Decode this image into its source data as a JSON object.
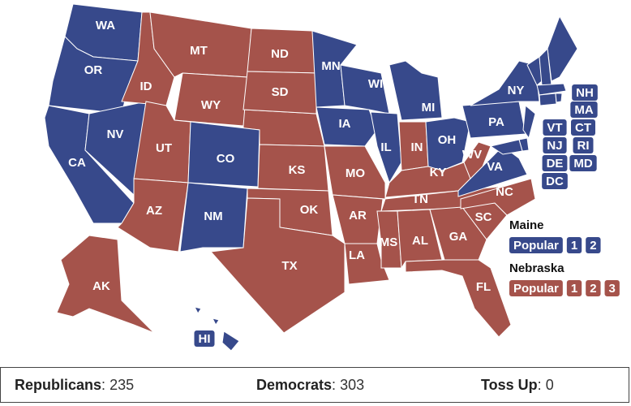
{
  "colors": {
    "R": "#a5534b",
    "D": "#37498b"
  },
  "states": [
    {
      "label": "WA",
      "party": "D"
    },
    {
      "label": "OR",
      "party": "D"
    },
    {
      "label": "CA",
      "party": "D"
    },
    {
      "label": "NV",
      "party": "D"
    },
    {
      "label": "ID",
      "party": "R"
    },
    {
      "label": "MT",
      "party": "R"
    },
    {
      "label": "WY",
      "party": "R"
    },
    {
      "label": "UT",
      "party": "R"
    },
    {
      "label": "AZ",
      "party": "R"
    },
    {
      "label": "CO",
      "party": "D"
    },
    {
      "label": "NM",
      "party": "D"
    },
    {
      "label": "ND",
      "party": "R"
    },
    {
      "label": "SD",
      "party": "R"
    },
    {
      "label": "KS",
      "party": "R"
    },
    {
      "label": "OK",
      "party": "R"
    },
    {
      "label": "TX",
      "party": "R"
    },
    {
      "label": "MN",
      "party": "D"
    },
    {
      "label": "IA",
      "party": "D"
    },
    {
      "label": "MO",
      "party": "R"
    },
    {
      "label": "AR",
      "party": "R"
    },
    {
      "label": "LA",
      "party": "R"
    },
    {
      "label": "WI",
      "party": "D"
    },
    {
      "label": "IL",
      "party": "D"
    },
    {
      "label": "MI",
      "party": "D"
    },
    {
      "label": "IN",
      "party": "R"
    },
    {
      "label": "OH",
      "party": "D"
    },
    {
      "label": "KY",
      "party": "R"
    },
    {
      "label": "TN",
      "party": "R"
    },
    {
      "label": "MS",
      "party": "R"
    },
    {
      "label": "AL",
      "party": "R"
    },
    {
      "label": "GA",
      "party": "R"
    },
    {
      "label": "FL",
      "party": "R"
    },
    {
      "label": "SC",
      "party": "R"
    },
    {
      "label": "NC",
      "party": "R"
    },
    {
      "label": "VA",
      "party": "D"
    },
    {
      "label": "WV",
      "party": "R"
    },
    {
      "label": "PA",
      "party": "D"
    },
    {
      "label": "NY",
      "party": "D"
    },
    {
      "label": "NJ",
      "party": "D"
    },
    {
      "label": "DE",
      "party": "D"
    },
    {
      "label": "MD",
      "party": "D"
    },
    {
      "label": "VT",
      "party": "D"
    },
    {
      "label": "NH",
      "party": "D"
    },
    {
      "label": "MA",
      "party": "D"
    },
    {
      "label": "CT",
      "party": "D"
    },
    {
      "label": "RI",
      "party": "D"
    },
    {
      "label": "DC",
      "party": "D"
    },
    {
      "label": "AK",
      "party": "R"
    },
    {
      "label": "HI",
      "party": "D"
    }
  ],
  "maine": {
    "title": "Maine",
    "party": "D",
    "districts": [
      "Popular",
      "1",
      "2"
    ]
  },
  "nebraska": {
    "title": "Nebraska",
    "party": "R",
    "districts": [
      "Popular",
      "1",
      "2",
      "3"
    ]
  },
  "summary": {
    "separator": ":",
    "items": [
      {
        "label": "Republicans",
        "value": 235
      },
      {
        "label": "Democrats",
        "value": 303
      },
      {
        "label": "Toss Up",
        "value": 0
      }
    ]
  }
}
